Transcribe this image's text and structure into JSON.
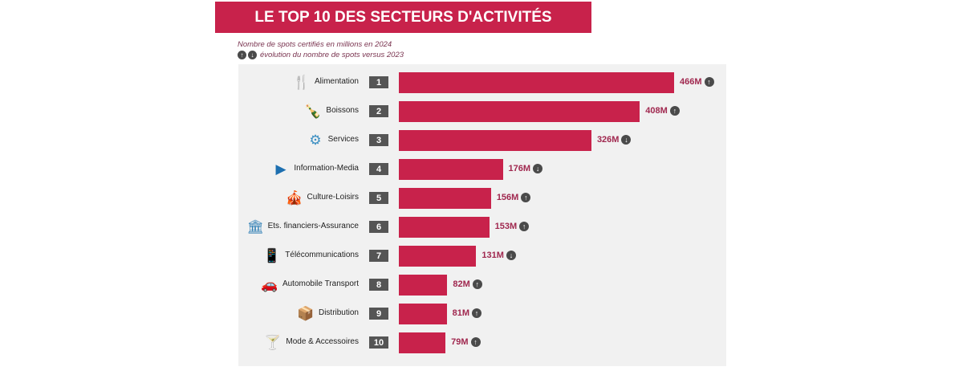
{
  "title": "LE TOP 10 DES SECTEURS D'ACTIVITÉS",
  "subtitle": "Nombre de spots certifiés en millions en 2024",
  "legend_note": "évolution du nombre de spots versus 2023",
  "colors": {
    "bar": "#c8224b",
    "title_bg": "#c8224b",
    "panel": "#f1f1f1",
    "rank_bg": "#555555"
  },
  "chart_data": {
    "type": "bar",
    "orientation": "horizontal",
    "title": "LE TOP 10 DES SECTEURS D'ACTIVITÉS",
    "subtitle": "Nombre de spots certifiés en millions en 2024",
    "unit": "M",
    "xlim": [
      0,
      466
    ],
    "categories": [
      "Alimentation",
      "Boissons",
      "Services",
      "Information-Media",
      "Culture-Loisirs",
      "Ets. financiers-Assurance",
      "Télécommunications",
      "Automobile Transport",
      "Distribution",
      "Mode & Accessoires"
    ],
    "ranks": [
      "1",
      "2",
      "3",
      "4",
      "5",
      "6",
      "7",
      "8",
      "9",
      "10"
    ],
    "values": [
      466,
      408,
      326,
      176,
      156,
      153,
      131,
      82,
      81,
      79
    ],
    "value_labels": [
      "466M",
      "408M",
      "326M",
      "176M",
      "156M",
      "153M",
      "131M",
      "82M",
      "81M",
      "79M"
    ],
    "trend": [
      "up",
      "up",
      "down",
      "down",
      "up",
      "up",
      "down",
      "up",
      "up",
      "up"
    ],
    "icons": [
      "fork-knife-icon",
      "bottles-icon",
      "gears-icon",
      "play-icon",
      "festival-icon",
      "bank-icon",
      "phone-icon",
      "car-icon",
      "warehouse-icon",
      "glass-icon"
    ]
  }
}
